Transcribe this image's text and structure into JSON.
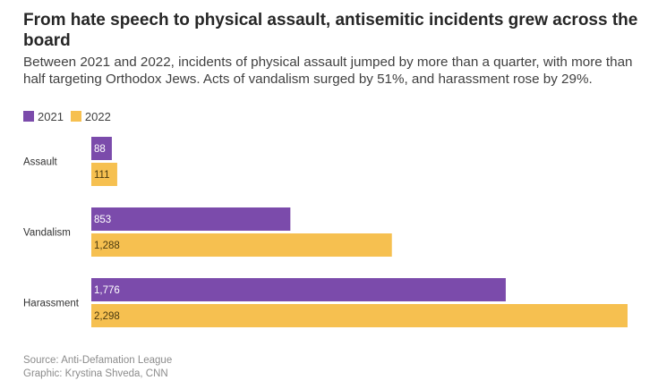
{
  "header": {
    "title": "From hate speech to physical assault, antisemitic incidents grew across the board",
    "subtitle": "Between 2021 and 2022, incidents of physical assault jumped by more than a quarter, with more than half targeting Orthodox Jews. Acts of vandalism surged by 51%, and harassment rose by 29%."
  },
  "colors": {
    "series_2021": "#7b4bab",
    "series_2022": "#f6c050",
    "label_inside_dark": "#ffffff",
    "label_inside_light": "#4a3a10",
    "label_outside": "#b3b3b3",
    "category_label": "#333333"
  },
  "footer": {
    "source": "Source: Anti-Defamation League",
    "credit": "Graphic: Krystina Shveda, CNN"
  },
  "chart_data": {
    "type": "bar",
    "orientation": "horizontal",
    "categories": [
      "Assault",
      "Vandalism",
      "Harassment"
    ],
    "series": [
      {
        "name": "2021",
        "values": [
          88,
          853,
          1776
        ],
        "labels": [
          "88",
          "853",
          "1,776"
        ]
      },
      {
        "name": "2022",
        "values": [
          111,
          1288,
          2298
        ],
        "labels": [
          "111",
          "1,288",
          "2,298"
        ]
      }
    ],
    "xlim": [
      0,
      2298
    ],
    "legend_position": "top-left",
    "grid": false
  }
}
